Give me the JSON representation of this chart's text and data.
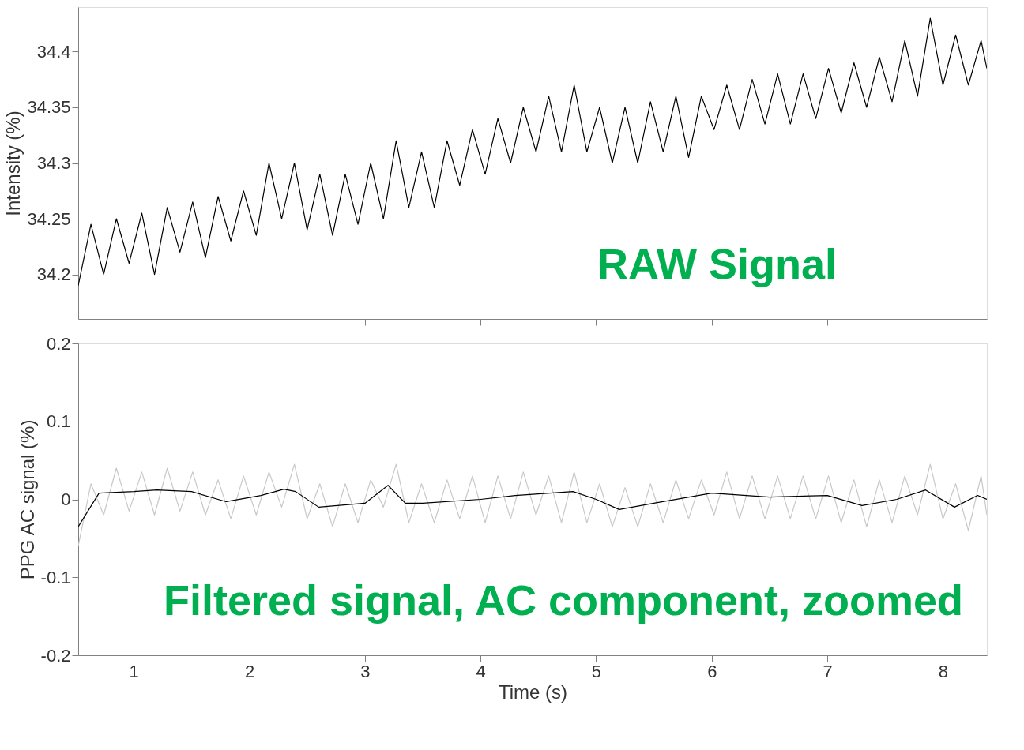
{
  "chart_data": [
    {
      "type": "line",
      "ylabel": "Intensity (%)",
      "annotations": [
        "RAW Signal"
      ],
      "xlim": [
        0.52,
        8.38
      ],
      "xticks": [
        1,
        2,
        3,
        4,
        5,
        6,
        7,
        8
      ],
      "ylim": [
        34.16,
        34.44
      ],
      "yticks": [
        34.2,
        34.25,
        34.3,
        34.35,
        34.4
      ],
      "tick_labels": "y",
      "grid": false,
      "series": [
        {
          "color": "#000000",
          "x": [
            0.52,
            0.63,
            0.74,
            0.85,
            0.96,
            1.07,
            1.18,
            1.29,
            1.4,
            1.51,
            1.62,
            1.73,
            1.84,
            1.95,
            2.06,
            2.17,
            2.28,
            2.39,
            2.5,
            2.61,
            2.72,
            2.83,
            2.94,
            3.05,
            3.16,
            3.27,
            3.38,
            3.49,
            3.6,
            3.71,
            3.82,
            3.93,
            4.04,
            4.15,
            4.26,
            4.37,
            4.48,
            4.59,
            4.7,
            4.81,
            4.92,
            5.03,
            5.14,
            5.25,
            5.36,
            5.47,
            5.58,
            5.69,
            5.8,
            5.91,
            6.02,
            6.13,
            6.24,
            6.35,
            6.46,
            6.57,
            6.68,
            6.79,
            6.9,
            7.01,
            7.12,
            7.23,
            7.34,
            7.45,
            7.56,
            7.67,
            7.78,
            7.89,
            8.0,
            8.11,
            8.22,
            8.33,
            8.38
          ],
          "values": [
            34.19,
            34.245,
            34.2,
            34.25,
            34.21,
            34.255,
            34.2,
            34.26,
            34.22,
            34.265,
            34.215,
            34.27,
            34.23,
            34.275,
            34.235,
            34.3,
            34.25,
            34.3,
            34.24,
            34.29,
            34.235,
            34.29,
            34.245,
            34.3,
            34.25,
            34.32,
            34.26,
            34.31,
            34.26,
            34.32,
            34.28,
            34.33,
            34.29,
            34.34,
            34.3,
            34.35,
            34.31,
            34.36,
            34.31,
            34.37,
            34.31,
            34.35,
            34.3,
            34.35,
            34.3,
            34.355,
            34.31,
            34.36,
            34.305,
            34.36,
            34.33,
            34.37,
            34.33,
            34.375,
            34.335,
            34.38,
            34.335,
            34.38,
            34.34,
            34.385,
            34.345,
            34.39,
            34.35,
            34.395,
            34.355,
            34.41,
            34.36,
            34.43,
            34.37,
            34.415,
            34.37,
            34.41,
            34.385
          ]
        }
      ]
    },
    {
      "type": "line",
      "xlabel": "Time (s)",
      "ylabel": "PPG AC signal (%)",
      "annotations": [
        "Filtered signal, AC component, zoomed"
      ],
      "xlim": [
        0.52,
        8.38
      ],
      "xticks": [
        1,
        2,
        3,
        4,
        5,
        6,
        7,
        8
      ],
      "ylim": [
        -0.2,
        0.2
      ],
      "yticks": [
        -0.2,
        -0.1,
        0,
        0.1,
        0.2
      ],
      "grid": false,
      "series": [
        {
          "color": "#c8c8c8",
          "x": [
            0.52,
            0.63,
            0.74,
            0.85,
            0.96,
            1.07,
            1.18,
            1.29,
            1.4,
            1.51,
            1.62,
            1.73,
            1.84,
            1.95,
            2.06,
            2.17,
            2.28,
            2.39,
            2.5,
            2.61,
            2.72,
            2.83,
            2.94,
            3.05,
            3.16,
            3.27,
            3.38,
            3.49,
            3.6,
            3.71,
            3.82,
            3.93,
            4.04,
            4.15,
            4.26,
            4.37,
            4.48,
            4.59,
            4.7,
            4.81,
            4.92,
            5.03,
            5.14,
            5.25,
            5.36,
            5.47,
            5.58,
            5.69,
            5.8,
            5.91,
            6.02,
            6.13,
            6.24,
            6.35,
            6.46,
            6.57,
            6.68,
            6.79,
            6.9,
            7.01,
            7.12,
            7.23,
            7.34,
            7.45,
            7.56,
            7.67,
            7.78,
            7.89,
            8.0,
            8.11,
            8.22,
            8.33,
            8.38
          ],
          "values": [
            -0.06,
            0.02,
            -0.02,
            0.04,
            -0.015,
            0.035,
            -0.02,
            0.04,
            -0.015,
            0.035,
            -0.02,
            0.025,
            -0.025,
            0.03,
            -0.02,
            0.035,
            -0.01,
            0.045,
            -0.025,
            0.02,
            -0.035,
            0.02,
            -0.03,
            0.025,
            -0.01,
            0.045,
            -0.03,
            0.02,
            -0.03,
            0.025,
            -0.025,
            0.03,
            -0.03,
            0.03,
            -0.025,
            0.035,
            -0.02,
            0.03,
            -0.03,
            0.035,
            -0.03,
            0.02,
            -0.035,
            0.015,
            -0.035,
            0.02,
            -0.03,
            0.025,
            -0.025,
            0.025,
            -0.02,
            0.035,
            -0.025,
            0.03,
            -0.025,
            0.03,
            -0.025,
            0.03,
            -0.025,
            0.03,
            -0.03,
            0.025,
            -0.035,
            0.025,
            -0.03,
            0.03,
            -0.02,
            0.045,
            -0.025,
            0.02,
            -0.04,
            0.03,
            -0.02
          ]
        },
        {
          "color": "#000000",
          "x": [
            0.52,
            0.7,
            1.0,
            1.2,
            1.5,
            1.8,
            2.1,
            2.3,
            2.4,
            2.6,
            3.0,
            3.2,
            3.35,
            3.5,
            4.0,
            4.3,
            4.8,
            5.0,
            5.2,
            5.5,
            6.0,
            6.5,
            7.0,
            7.3,
            7.6,
            7.85,
            8.1,
            8.3,
            8.38
          ],
          "values": [
            -0.035,
            0.008,
            0.01,
            0.012,
            0.01,
            -0.003,
            0.005,
            0.013,
            0.01,
            -0.01,
            -0.005,
            0.018,
            -0.005,
            -0.005,
            0,
            0.005,
            0.01,
            0,
            -0.013,
            -0.005,
            0.008,
            0.003,
            0.005,
            -0.008,
            0,
            0.012,
            -0.01,
            0.005,
            0
          ]
        }
      ]
    }
  ]
}
